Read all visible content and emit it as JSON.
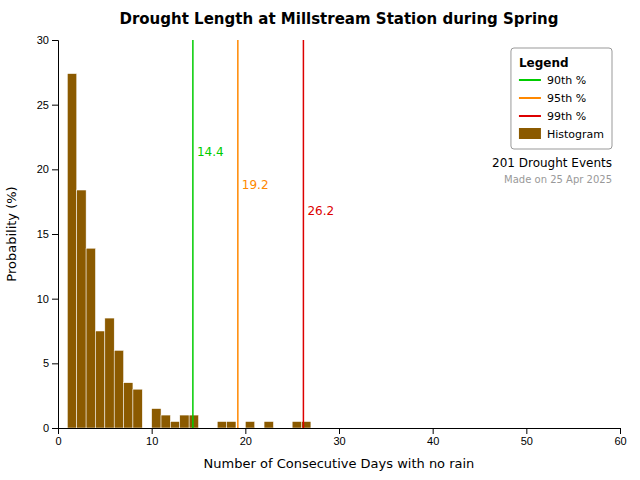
{
  "chart_data": {
    "type": "histogram",
    "title": "Drought Length at Millstream Station during Spring",
    "x_label": "Number of Consecutive Days with no rain",
    "y_label": "Probability (%)",
    "name": "Histogram",
    "color": "#8B5A00",
    "bins": [
      1,
      2,
      3,
      4,
      5,
      6,
      7,
      8,
      9,
      10,
      11,
      12,
      13,
      14,
      15,
      16,
      17,
      18,
      19,
      20,
      21,
      22,
      23,
      24,
      25,
      26,
      27,
      28,
      29,
      30,
      31,
      32,
      33,
      34,
      35
    ],
    "values": [
      27.4,
      18.4,
      13.9,
      7.5,
      8.5,
      6.0,
      3.5,
      3.0,
      0.0,
      1.5,
      1.0,
      0.5,
      1.0,
      1.0,
      0.0,
      0.0,
      0.5,
      0.5,
      0.0,
      0.5,
      0.0,
      0.5,
      0.0,
      0.0,
      0.5,
      0.5,
      0.0,
      0.0,
      0.0,
      0.0,
      0.0,
      0.0,
      0.0,
      0.0
    ],
    "xlim": [
      0,
      60
    ],
    "ylim": [
      0,
      30
    ],
    "xticks": [
      0,
      10,
      20,
      30,
      40,
      50,
      60
    ],
    "yticks": [
      0,
      5,
      10,
      15,
      20,
      25,
      30
    ],
    "grid": false,
    "vlines": [
      {
        "name": "90th %",
        "value": 14.4,
        "label": "14.4",
        "label_y": 21.0,
        "color": "#00cc00"
      },
      {
        "name": "95th %",
        "value": 19.2,
        "label": "19.2",
        "label_y": 18.5,
        "color": "#ff8800"
      },
      {
        "name": "99th %",
        "value": 26.2,
        "label": "26.2",
        "label_y": 16.5,
        "color": "#dd0000"
      }
    ],
    "legend": "upper right",
    "legend_title": "Legend",
    "annotations": [
      {
        "text": "201 Drought Events"
      },
      {
        "text": "Made on 25 Apr 2025"
      }
    ]
  }
}
